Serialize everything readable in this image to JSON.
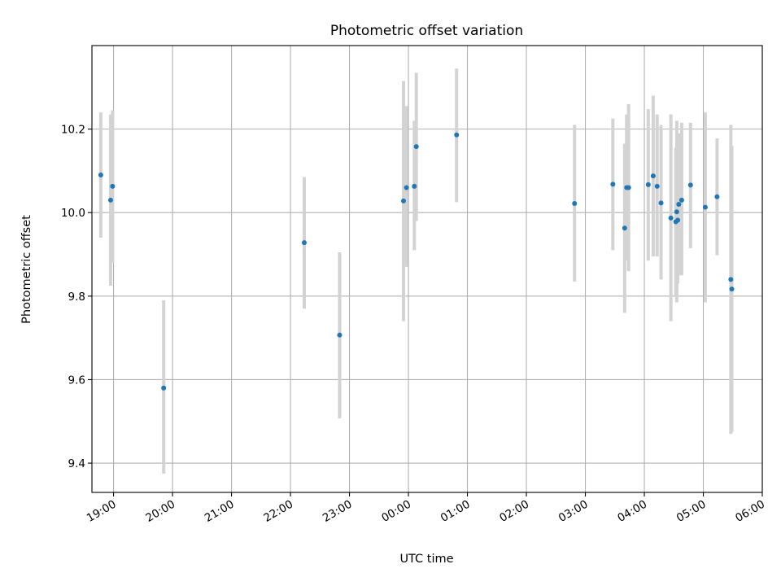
{
  "chart_data": {
    "type": "scatter",
    "title": "Photometric offset variation",
    "xlabel": "UTC time",
    "ylabel": "Photometric offset",
    "x_axis_type": "time",
    "xlim": [
      "18:38",
      "06:00"
    ],
    "ylim": [
      9.33,
      10.4
    ],
    "grid": true,
    "x_ticks": [
      "19:00",
      "20:00",
      "21:00",
      "22:00",
      "23:00",
      "00:00",
      "01:00",
      "02:00",
      "03:00",
      "04:00",
      "05:00",
      "06:00"
    ],
    "y_ticks": [
      "9.4",
      "9.6",
      "9.8",
      "10.0",
      "10.2"
    ],
    "colors": {
      "point": "#1f77b4",
      "errorbar": "#d3d3d3",
      "grid": "#b0b0b0"
    },
    "points": [
      {
        "x": "18:47",
        "y": 10.09,
        "ylo": 9.94,
        "yhi": 10.24
      },
      {
        "x": "18:57",
        "y": 10.03,
        "ylo": 9.825,
        "yhi": 10.235
      },
      {
        "x": "18:59",
        "y": 10.063,
        "ylo": 9.88,
        "yhi": 10.245
      },
      {
        "x": "19:51",
        "y": 9.58,
        "ylo": 9.375,
        "yhi": 9.79
      },
      {
        "x": "22:14",
        "y": 9.928,
        "ylo": 9.77,
        "yhi": 10.085
      },
      {
        "x": "22:50",
        "y": 9.707,
        "ylo": 9.507,
        "yhi": 9.905
      },
      {
        "x": "23:55",
        "y": 10.028,
        "ylo": 9.74,
        "yhi": 10.315
      },
      {
        "x": "23:58",
        "y": 10.06,
        "ylo": 9.87,
        "yhi": 10.255
      },
      {
        "x": "00:06",
        "y": 10.063,
        "ylo": 9.91,
        "yhi": 10.22
      },
      {
        "x": "00:08",
        "y": 10.158,
        "ylo": 9.98,
        "yhi": 10.335
      },
      {
        "x": "00:49",
        "y": 10.186,
        "ylo": 10.025,
        "yhi": 10.345
      },
      {
        "x": "02:49",
        "y": 10.022,
        "ylo": 9.835,
        "yhi": 10.21
      },
      {
        "x": "03:28",
        "y": 10.068,
        "ylo": 9.91,
        "yhi": 10.225
      },
      {
        "x": "03:40",
        "y": 9.963,
        "ylo": 9.76,
        "yhi": 10.165
      },
      {
        "x": "03:42",
        "y": 10.06,
        "ylo": 9.885,
        "yhi": 10.235
      },
      {
        "x": "03:44",
        "y": 10.06,
        "ylo": 9.86,
        "yhi": 10.26
      },
      {
        "x": "04:04",
        "y": 10.067,
        "ylo": 9.885,
        "yhi": 10.248
      },
      {
        "x": "04:09",
        "y": 10.088,
        "ylo": 9.895,
        "yhi": 10.28
      },
      {
        "x": "04:13",
        "y": 10.063,
        "ylo": 9.895,
        "yhi": 10.235
      },
      {
        "x": "04:17",
        "y": 10.023,
        "ylo": 9.84,
        "yhi": 10.21
      },
      {
        "x": "04:27",
        "y": 9.987,
        "ylo": 9.74,
        "yhi": 10.235
      },
      {
        "x": "04:32",
        "y": 9.978,
        "ylo": 9.8,
        "yhi": 10.155
      },
      {
        "x": "04:33",
        "y": 10.002,
        "ylo": 9.785,
        "yhi": 10.22
      },
      {
        "x": "04:34",
        "y": 9.982,
        "ylo": 9.83,
        "yhi": 10.135
      },
      {
        "x": "04:35",
        "y": 10.02,
        "ylo": 9.85,
        "yhi": 10.19
      },
      {
        "x": "04:38",
        "y": 10.03,
        "ylo": 9.85,
        "yhi": 10.215
      },
      {
        "x": "04:47",
        "y": 10.066,
        "ylo": 9.915,
        "yhi": 10.215
      },
      {
        "x": "05:02",
        "y": 10.013,
        "ylo": 9.785,
        "yhi": 10.24
      },
      {
        "x": "05:14",
        "y": 10.038,
        "ylo": 9.898,
        "yhi": 10.178
      },
      {
        "x": "05:28",
        "y": 9.84,
        "ylo": 9.47,
        "yhi": 10.21
      },
      {
        "x": "05:29",
        "y": 9.817,
        "ylo": 9.475,
        "yhi": 10.16
      }
    ]
  }
}
